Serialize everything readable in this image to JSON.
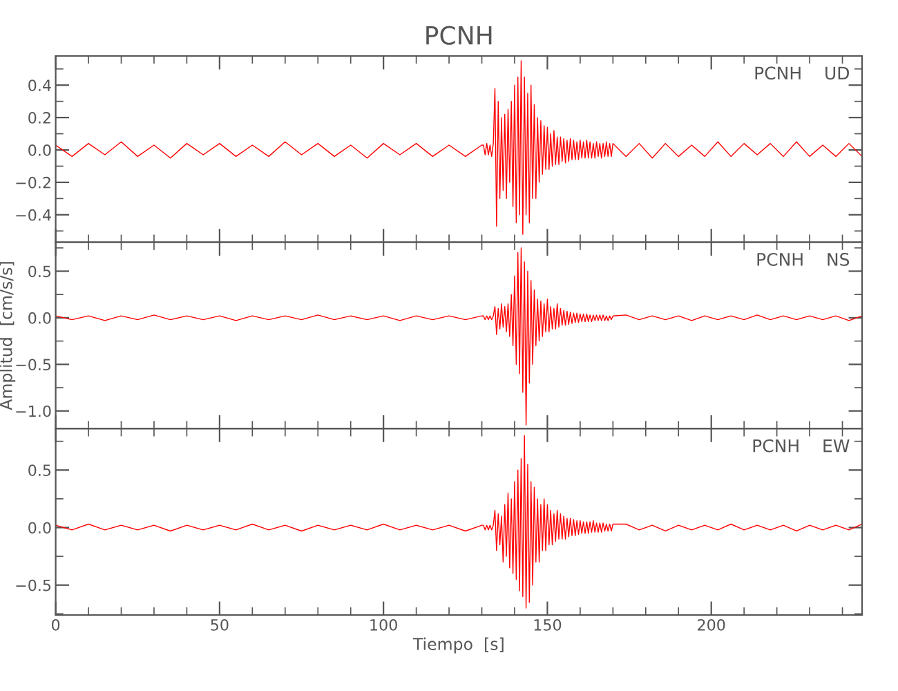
{
  "chart_data": [
    {
      "type": "line",
      "title": "PCNH",
      "annotations": [
        "PCNH    UD"
      ],
      "tick_labels": "y",
      "xlim": [
        0,
        246
      ],
      "ylim": [
        -0.57,
        0.58
      ],
      "xticks": [
        0,
        {
          "value": 10,
          "label": null
        },
        {
          "value": 20,
          "label": null
        },
        {
          "value": 30,
          "label": null
        },
        {
          "value": 40,
          "label": null
        },
        50,
        {
          "value": 60,
          "label": null
        },
        {
          "value": 70,
          "label": null
        },
        {
          "value": 80,
          "label": null
        },
        {
          "value": 90,
          "label": null
        },
        100,
        {
          "value": 110,
          "label": null
        },
        {
          "value": 120,
          "label": null
        },
        {
          "value": 130,
          "label": null
        },
        {
          "value": 140,
          "label": null
        },
        150,
        {
          "value": 160,
          "label": null
        },
        {
          "value": 170,
          "label": null
        },
        {
          "value": 180,
          "label": null
        },
        {
          "value": 190,
          "label": null
        },
        200,
        {
          "value": 210,
          "label": null
        },
        {
          "value": 220,
          "label": null
        },
        {
          "value": 230,
          "label": null
        },
        {
          "value": 240,
          "label": null
        }
      ],
      "yticks": [
        {
          "value": -0.5,
          "label": null
        },
        {
          "value": -0.4,
          "label": "−0.4"
        },
        {
          "value": -0.3,
          "label": null
        },
        {
          "value": -0.2,
          "label": "−0.2"
        },
        {
          "value": -0.1,
          "label": null
        },
        {
          "value": 0,
          "label": "0.0"
        },
        {
          "value": 0.1,
          "label": null
        },
        0.2,
        {
          "value": 0.3,
          "label": null
        },
        0.4,
        {
          "value": 0.5,
          "label": null
        }
      ],
      "series": [
        {
          "color": "#ff0000",
          "x": [
            0,
            5,
            10,
            15,
            20,
            25,
            30,
            35,
            40,
            45,
            50,
            55,
            60,
            65,
            70,
            75,
            80,
            85,
            90,
            95,
            100,
            105,
            110,
            115,
            120,
            125,
            130,
            130.5,
            131,
            131.5,
            132,
            132.5,
            133,
            133.5,
            134,
            134.5,
            135,
            135.5,
            136,
            136.5,
            137,
            137.5,
            138,
            138.5,
            139,
            139.5,
            140,
            140.5,
            141,
            141.5,
            142,
            142.5,
            143,
            143.5,
            144,
            144.5,
            145,
            145.5,
            146,
            146.5,
            147,
            147.5,
            148,
            148.5,
            149,
            149.5,
            150,
            150.5,
            151,
            151.5,
            152,
            152.5,
            153,
            153.5,
            154,
            154.5,
            155,
            155.5,
            156,
            156.5,
            157,
            157.5,
            158,
            158.5,
            159,
            159.5,
            160,
            160.5,
            161,
            161.5,
            162,
            162.5,
            163,
            163.5,
            164,
            164.5,
            165,
            165.5,
            166,
            166.5,
            167,
            167.5,
            168,
            168.5,
            169,
            169.5,
            170,
            174,
            178,
            182,
            186,
            190,
            194,
            198,
            202,
            206,
            210,
            214,
            218,
            222,
            226,
            230,
            234,
            238,
            242,
            246
          ],
          "values": [
            0.03,
            -0.04,
            0.04,
            -0.03,
            0.05,
            -0.04,
            0.03,
            -0.05,
            0.04,
            -0.03,
            0.04,
            -0.04,
            0.03,
            -0.04,
            0.05,
            -0.03,
            0.04,
            -0.04,
            0.03,
            -0.05,
            0.04,
            -0.03,
            0.04,
            -0.04,
            0.03,
            -0.04,
            0.03,
            0.03,
            -0.03,
            0.04,
            -0.03,
            0.03,
            -0.04,
            0.04,
            0.38,
            -0.47,
            0.3,
            -0.3,
            0.2,
            -0.25,
            0.22,
            -0.3,
            0.25,
            -0.2,
            0.3,
            -0.35,
            0.4,
            -0.45,
            0.45,
            -0.4,
            0.55,
            -0.52,
            0.45,
            -0.4,
            0.35,
            -0.45,
            0.4,
            -0.3,
            0.28,
            -0.3,
            0.2,
            -0.2,
            0.18,
            -0.15,
            0.15,
            -0.12,
            0.14,
            -0.12,
            0.1,
            -0.1,
            0.12,
            -0.09,
            0.08,
            -0.09,
            0.08,
            -0.07,
            0.07,
            -0.08,
            0.06,
            -0.07,
            0.07,
            -0.06,
            0.06,
            -0.06,
            0.05,
            -0.06,
            0.06,
            -0.05,
            0.05,
            -0.05,
            0.06,
            -0.05,
            0.05,
            -0.05,
            0.04,
            -0.05,
            0.05,
            -0.04,
            0.04,
            -0.05,
            0.04,
            -0.04,
            0.05,
            -0.04,
            0.04,
            -0.04,
            0.04,
            -0.04,
            0.04,
            -0.05,
            0.04,
            -0.04,
            0.03,
            -0.04,
            0.05,
            -0.04,
            0.04,
            -0.03,
            0.04,
            -0.04,
            0.05,
            -0.04,
            0.03,
            -0.04,
            0.04,
            -0.04
          ]
        }
      ]
    },
    {
      "type": "line",
      "ylabel": "Amplitud  [cm/s/s]",
      "annotations": [
        "PCNH    NS"
      ],
      "tick_labels": "y",
      "xlim": [
        0,
        246
      ],
      "ylim": [
        -1.19,
        0.81
      ],
      "xticks": [
        0,
        {
          "value": 10,
          "label": null
        },
        {
          "value": 20,
          "label": null
        },
        {
          "value": 30,
          "label": null
        },
        {
          "value": 40,
          "label": null
        },
        50,
        {
          "value": 60,
          "label": null
        },
        {
          "value": 70,
          "label": null
        },
        {
          "value": 80,
          "label": null
        },
        {
          "value": 90,
          "label": null
        },
        100,
        {
          "value": 110,
          "label": null
        },
        {
          "value": 120,
          "label": null
        },
        {
          "value": 130,
          "label": null
        },
        {
          "value": 140,
          "label": null
        },
        150,
        {
          "value": 160,
          "label": null
        },
        {
          "value": 170,
          "label": null
        },
        {
          "value": 180,
          "label": null
        },
        {
          "value": 190,
          "label": null
        },
        200,
        {
          "value": 210,
          "label": null
        },
        {
          "value": 220,
          "label": null
        },
        {
          "value": 230,
          "label": null
        },
        {
          "value": 240,
          "label": null
        }
      ],
      "yticks": [
        {
          "value": -1.0,
          "label": "−1.0"
        },
        {
          "value": -0.75,
          "label": null
        },
        {
          "value": -0.5,
          "label": "−0.5"
        },
        {
          "value": -0.25,
          "label": null
        },
        {
          "value": 0,
          "label": "0.0"
        },
        {
          "value": 0.25,
          "label": null
        },
        0.5,
        {
          "value": 0.75,
          "label": null
        }
      ],
      "series": [
        {
          "color": "#ff0000",
          "x": [
            0,
            5,
            10,
            15,
            20,
            25,
            30,
            35,
            40,
            45,
            50,
            55,
            60,
            65,
            70,
            75,
            80,
            85,
            90,
            95,
            100,
            105,
            110,
            115,
            120,
            125,
            130,
            130.5,
            131,
            131.5,
            132,
            132.5,
            133,
            133.5,
            134,
            134.5,
            135,
            135.5,
            136,
            136.5,
            137,
            137.5,
            138,
            138.5,
            139,
            139.5,
            140,
            140.5,
            141,
            141.5,
            142,
            142.5,
            143,
            143.5,
            144,
            144.5,
            145,
            145.5,
            146,
            146.5,
            147,
            147.5,
            148,
            148.5,
            149,
            149.5,
            150,
            150.5,
            151,
            151.5,
            152,
            152.5,
            153,
            153.5,
            154,
            154.5,
            155,
            155.5,
            156,
            156.5,
            157,
            157.5,
            158,
            158.5,
            159,
            159.5,
            160,
            160.5,
            161,
            161.5,
            162,
            162.5,
            163,
            163.5,
            164,
            164.5,
            165,
            165.5,
            166,
            166.5,
            167,
            167.5,
            168,
            168.5,
            169,
            169.5,
            170,
            174,
            178,
            182,
            186,
            190,
            194,
            198,
            202,
            206,
            210,
            214,
            218,
            222,
            226,
            230,
            234,
            238,
            242,
            246
          ],
          "values": [
            0.02,
            -0.02,
            0.02,
            -0.03,
            0.02,
            -0.02,
            0.03,
            -0.02,
            0.02,
            -0.02,
            0.02,
            -0.03,
            0.02,
            -0.02,
            0.02,
            -0.02,
            0.03,
            -0.02,
            0.02,
            -0.02,
            0.02,
            -0.03,
            0.02,
            -0.02,
            0.02,
            -0.02,
            0.02,
            0.02,
            -0.02,
            0.02,
            -0.02,
            0.02,
            -0.02,
            0.02,
            0.12,
            -0.18,
            0.1,
            -0.12,
            0.15,
            -0.1,
            0.12,
            -0.15,
            0.15,
            -0.2,
            0.25,
            -0.3,
            0.45,
            -0.5,
            0.7,
            -0.6,
            0.75,
            -0.8,
            0.6,
            -1.15,
            0.5,
            -0.7,
            0.4,
            -0.5,
            0.3,
            -0.3,
            0.2,
            -0.25,
            0.18,
            -0.2,
            0.15,
            -0.15,
            0.2,
            -0.15,
            0.12,
            -0.12,
            0.1,
            -0.12,
            0.15,
            -0.1,
            0.1,
            -0.08,
            0.08,
            -0.08,
            0.07,
            -0.07,
            0.06,
            -0.06,
            0.05,
            -0.05,
            0.05,
            -0.05,
            0.04,
            -0.04,
            0.04,
            -0.04,
            0.04,
            -0.04,
            0.03,
            -0.04,
            0.03,
            -0.03,
            0.03,
            -0.03,
            0.03,
            -0.03,
            0.03,
            -0.03,
            0.02,
            -0.03,
            0.02,
            -0.02,
            0.02,
            0.03,
            -0.02,
            0.02,
            -0.02,
            0.02,
            -0.03,
            0.02,
            -0.02,
            0.02,
            -0.02,
            0.03,
            -0.02,
            0.02,
            -0.02,
            0.02,
            -0.02,
            0.02,
            -0.03,
            0.02
          ]
        }
      ]
    },
    {
      "type": "line",
      "xlabel": "Tiempo  [s]",
      "annotations": [
        "PCNH    EW"
      ],
      "xlim": [
        0,
        246
      ],
      "ylim": [
        -0.76,
        0.86
      ],
      "xticks": [
        0,
        {
          "value": 10,
          "label": null
        },
        {
          "value": 20,
          "label": null
        },
        {
          "value": 30,
          "label": null
        },
        {
          "value": 40,
          "label": null
        },
        50,
        {
          "value": 60,
          "label": null
        },
        {
          "value": 70,
          "label": null
        },
        {
          "value": 80,
          "label": null
        },
        {
          "value": 90,
          "label": null
        },
        100,
        {
          "value": 110,
          "label": null
        },
        {
          "value": 120,
          "label": null
        },
        {
          "value": 130,
          "label": null
        },
        {
          "value": 140,
          "label": null
        },
        150,
        {
          "value": 160,
          "label": null
        },
        {
          "value": 170,
          "label": null
        },
        {
          "value": 180,
          "label": null
        },
        {
          "value": 190,
          "label": null
        },
        200,
        {
          "value": 210,
          "label": null
        },
        {
          "value": 220,
          "label": null
        },
        {
          "value": 230,
          "label": null
        },
        {
          "value": 240,
          "label": null
        }
      ],
      "yticks": [
        {
          "value": -0.75,
          "label": null
        },
        {
          "value": -0.5,
          "label": "−0.5"
        },
        {
          "value": -0.25,
          "label": null
        },
        {
          "value": 0,
          "label": "0.0"
        },
        {
          "value": 0.25,
          "label": null
        },
        0.5,
        {
          "value": 0.75,
          "label": null
        }
      ],
      "series": [
        {
          "color": "#ff0000",
          "x": [
            0,
            5,
            10,
            15,
            20,
            25,
            30,
            35,
            40,
            45,
            50,
            55,
            60,
            65,
            70,
            75,
            80,
            85,
            90,
            95,
            100,
            105,
            110,
            115,
            120,
            125,
            130,
            130.5,
            131,
            131.5,
            132,
            132.5,
            133,
            133.5,
            134,
            134.5,
            135,
            135.5,
            136,
            136.5,
            137,
            137.5,
            138,
            138.5,
            139,
            139.5,
            140,
            140.5,
            141,
            141.5,
            142,
            142.5,
            143,
            143.5,
            144,
            144.5,
            145,
            145.5,
            146,
            146.5,
            147,
            147.5,
            148,
            148.5,
            149,
            149.5,
            150,
            150.5,
            151,
            151.5,
            152,
            152.5,
            153,
            153.5,
            154,
            154.5,
            155,
            155.5,
            156,
            156.5,
            157,
            157.5,
            158,
            158.5,
            159,
            159.5,
            160,
            160.5,
            161,
            161.5,
            162,
            162.5,
            163,
            163.5,
            164,
            164.5,
            165,
            165.5,
            166,
            166.5,
            167,
            167.5,
            168,
            168.5,
            169,
            169.5,
            170,
            174,
            178,
            182,
            186,
            190,
            194,
            198,
            202,
            206,
            210,
            214,
            218,
            222,
            226,
            230,
            234,
            238,
            242,
            246
          ],
          "values": [
            0.02,
            -0.02,
            0.03,
            -0.02,
            0.02,
            -0.02,
            0.02,
            -0.03,
            0.02,
            -0.02,
            0.02,
            -0.02,
            0.03,
            -0.02,
            0.02,
            -0.03,
            0.02,
            -0.02,
            0.02,
            -0.02,
            0.03,
            -0.02,
            0.02,
            -0.02,
            0.02,
            -0.03,
            0.02,
            0.02,
            -0.02,
            0.02,
            -0.02,
            0.02,
            -0.02,
            0.02,
            0.15,
            -0.2,
            0.12,
            -0.15,
            0.1,
            -0.3,
            0.2,
            -0.25,
            0.3,
            -0.35,
            0.25,
            -0.4,
            0.4,
            -0.45,
            0.5,
            -0.55,
            0.6,
            -0.6,
            0.8,
            -0.7,
            0.55,
            -0.65,
            0.4,
            -0.5,
            0.35,
            -0.3,
            0.25,
            -0.3,
            0.2,
            -0.2,
            0.25,
            -0.2,
            0.2,
            -0.15,
            0.15,
            -0.15,
            0.12,
            -0.12,
            0.15,
            -0.1,
            0.12,
            -0.1,
            0.1,
            -0.1,
            0.08,
            -0.08,
            0.08,
            -0.07,
            0.07,
            -0.07,
            0.06,
            -0.06,
            0.06,
            -0.05,
            0.05,
            -0.05,
            0.05,
            -0.05,
            0.05,
            -0.04,
            0.06,
            -0.04,
            0.04,
            -0.04,
            0.04,
            -0.04,
            0.04,
            -0.03,
            0.03,
            -0.03,
            0.03,
            -0.03,
            0.03,
            0.03,
            -0.02,
            0.02,
            -0.03,
            0.02,
            -0.02,
            0.02,
            -0.02,
            0.03,
            -0.02,
            0.02,
            -0.02,
            0.02,
            -0.03,
            0.02,
            -0.02,
            0.02,
            -0.02,
            0.03
          ]
        }
      ]
    }
  ]
}
